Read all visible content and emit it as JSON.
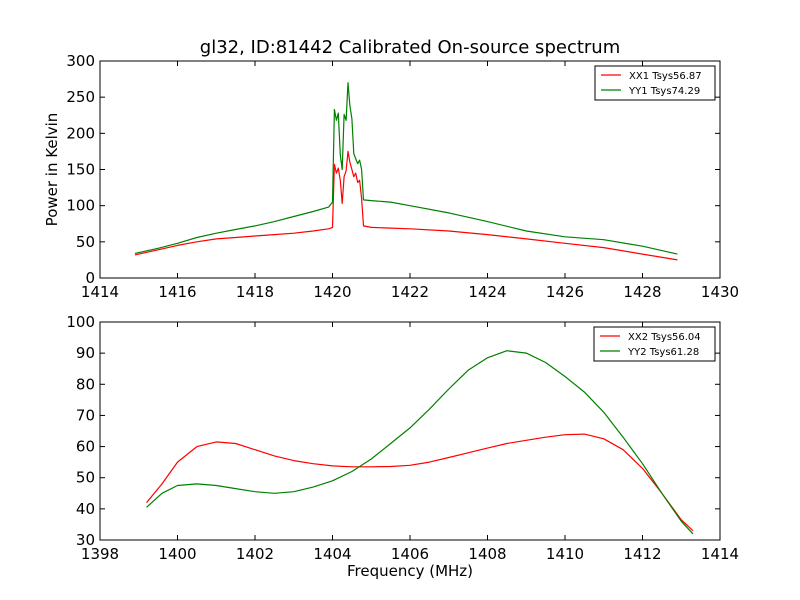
{
  "figure_title": "gl32, ID:81442 Calibrated On-source spectrum",
  "colors": {
    "xx": "#ff0000",
    "yy": "#008000",
    "axes": "#000000",
    "background": "#ffffff"
  },
  "chart_data": [
    {
      "type": "line",
      "title": "gl32, ID:81442 Calibrated On-source spectrum",
      "xlabel": "",
      "ylabel": "Power in Kelvin",
      "xlim": [
        1414,
        1430
      ],
      "ylim": [
        0,
        300
      ],
      "xticks": [
        1414,
        1416,
        1418,
        1420,
        1422,
        1424,
        1426,
        1428,
        1430
      ],
      "yticks": [
        0,
        50,
        100,
        150,
        200,
        250,
        300
      ],
      "grid": false,
      "legend_position": "top-right",
      "series": [
        {
          "name": "XX1 Tsys56.87",
          "color": "#ff0000",
          "points": [
            [
              1414.9,
              32
            ],
            [
              1415.5,
              39
            ],
            [
              1416,
              45
            ],
            [
              1416.5,
              50
            ],
            [
              1417,
              54
            ],
            [
              1417.5,
              56
            ],
            [
              1418,
              58
            ],
            [
              1418.5,
              60
            ],
            [
              1419,
              62
            ],
            [
              1419.5,
              65
            ],
            [
              1419.9,
              68
            ],
            [
              1420.0,
              70
            ],
            [
              1420.05,
              157
            ],
            [
              1420.1,
              145
            ],
            [
              1420.15,
              152
            ],
            [
              1420.2,
              135
            ],
            [
              1420.25,
              103
            ],
            [
              1420.3,
              140
            ],
            [
              1420.35,
              148
            ],
            [
              1420.4,
              175
            ],
            [
              1420.45,
              160
            ],
            [
              1420.5,
              150
            ],
            [
              1420.55,
              140
            ],
            [
              1420.6,
              145
            ],
            [
              1420.65,
              132
            ],
            [
              1420.7,
              135
            ],
            [
              1420.75,
              110
            ],
            [
              1420.8,
              72
            ],
            [
              1421,
              70
            ],
            [
              1421.5,
              69
            ],
            [
              1422,
              68
            ],
            [
              1423,
              65
            ],
            [
              1424,
              60
            ],
            [
              1425,
              54
            ],
            [
              1426,
              48
            ],
            [
              1427,
              42
            ],
            [
              1428,
              33
            ],
            [
              1428.9,
              25
            ]
          ]
        },
        {
          "name": "YY1 Tsys74.29",
          "color": "#008000",
          "points": [
            [
              1414.9,
              34
            ],
            [
              1415.5,
              41
            ],
            [
              1416,
              48
            ],
            [
              1416.5,
              56
            ],
            [
              1417,
              62
            ],
            [
              1417.5,
              67
            ],
            [
              1418,
              72
            ],
            [
              1418.5,
              78
            ],
            [
              1419,
              85
            ],
            [
              1419.5,
              92
            ],
            [
              1419.9,
              98
            ],
            [
              1420.0,
              105
            ],
            [
              1420.05,
              233
            ],
            [
              1420.1,
              218
            ],
            [
              1420.15,
              228
            ],
            [
              1420.2,
              170
            ],
            [
              1420.25,
              150
            ],
            [
              1420.3,
              226
            ],
            [
              1420.35,
              218
            ],
            [
              1420.4,
              270
            ],
            [
              1420.45,
              238
            ],
            [
              1420.5,
              220
            ],
            [
              1420.55,
              172
            ],
            [
              1420.6,
              165
            ],
            [
              1420.65,
              158
            ],
            [
              1420.7,
              163
            ],
            [
              1420.75,
              150
            ],
            [
              1420.8,
              108
            ],
            [
              1421,
              107
            ],
            [
              1421.5,
              105
            ],
            [
              1422,
              100
            ],
            [
              1423,
              90
            ],
            [
              1424,
              78
            ],
            [
              1425,
              65
            ],
            [
              1426,
              57
            ],
            [
              1427,
              53
            ],
            [
              1428,
              44
            ],
            [
              1428.9,
              33
            ]
          ]
        }
      ]
    },
    {
      "type": "line",
      "title": "",
      "xlabel": "Frequency (MHz)",
      "ylabel": "",
      "xlim": [
        1398,
        1414
      ],
      "ylim": [
        30,
        100
      ],
      "xticks": [
        1398,
        1400,
        1402,
        1404,
        1406,
        1408,
        1410,
        1412,
        1414
      ],
      "yticks": [
        30,
        40,
        50,
        60,
        70,
        80,
        90,
        100
      ],
      "grid": false,
      "legend_position": "top-right",
      "series": [
        {
          "name": "XX2 Tsys56.04",
          "color": "#ff0000",
          "points": [
            [
              1399.2,
              42
            ],
            [
              1399.6,
              48
            ],
            [
              1400,
              55
            ],
            [
              1400.5,
              60
            ],
            [
              1401,
              61.5
            ],
            [
              1401.5,
              61
            ],
            [
              1402,
              59
            ],
            [
              1402.5,
              57
            ],
            [
              1403,
              55.5
            ],
            [
              1403.5,
              54.5
            ],
            [
              1404,
              53.8
            ],
            [
              1404.5,
              53.5
            ],
            [
              1405,
              53.5
            ],
            [
              1405.5,
              53.6
            ],
            [
              1406,
              54
            ],
            [
              1406.5,
              55
            ],
            [
              1407,
              56.5
            ],
            [
              1407.5,
              58
            ],
            [
              1408,
              59.5
            ],
            [
              1408.5,
              61
            ],
            [
              1409,
              62
            ],
            [
              1409.5,
              63
            ],
            [
              1410,
              63.8
            ],
            [
              1410.5,
              64
            ],
            [
              1411,
              62.5
            ],
            [
              1411.5,
              59
            ],
            [
              1412,
              53
            ],
            [
              1412.5,
              45
            ],
            [
              1413,
              36.5
            ],
            [
              1413.3,
              33
            ]
          ]
        },
        {
          "name": "YY2 Tsys61.28",
          "color": "#008000",
          "points": [
            [
              1399.2,
              40.5
            ],
            [
              1399.6,
              45
            ],
            [
              1400,
              47.5
            ],
            [
              1400.5,
              48
            ],
            [
              1401,
              47.5
            ],
            [
              1401.5,
              46.5
            ],
            [
              1402,
              45.5
            ],
            [
              1402.5,
              45
            ],
            [
              1403,
              45.5
            ],
            [
              1403.5,
              47
            ],
            [
              1404,
              49
            ],
            [
              1404.5,
              52
            ],
            [
              1405,
              56
            ],
            [
              1405.5,
              61
            ],
            [
              1406,
              66
            ],
            [
              1406.5,
              72
            ],
            [
              1407,
              78.5
            ],
            [
              1407.5,
              84.5
            ],
            [
              1408,
              88.5
            ],
            [
              1408.5,
              90.8
            ],
            [
              1409,
              90
            ],
            [
              1409.5,
              87
            ],
            [
              1410,
              82.5
            ],
            [
              1410.5,
              77.5
            ],
            [
              1411,
              71
            ],
            [
              1411.5,
              63
            ],
            [
              1412,
              54.5
            ],
            [
              1412.5,
              45
            ],
            [
              1413,
              36
            ],
            [
              1413.3,
              32
            ]
          ]
        }
      ]
    }
  ]
}
